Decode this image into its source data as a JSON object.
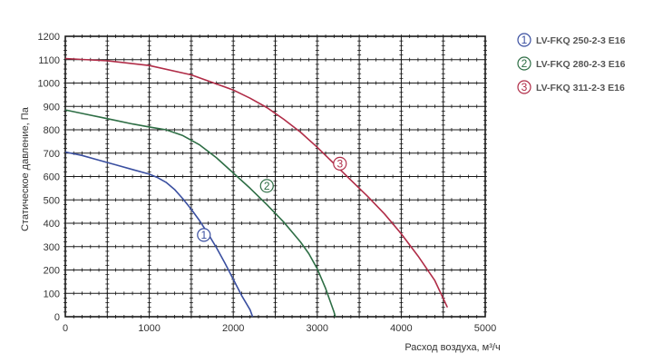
{
  "chart_data": {
    "type": "line",
    "title": "",
    "xlabel": "Расход воздуха, м³/ч",
    "ylabel": "Статическое давление, Па",
    "xlim": [
      0,
      5000
    ],
    "ylim": [
      0,
      1200
    ],
    "xticks": [
      0,
      1000,
      2000,
      3000,
      4000,
      5000
    ],
    "yticks": [
      0,
      100,
      200,
      300,
      400,
      500,
      600,
      700,
      800,
      900,
      1000,
      1100,
      1200
    ],
    "grid": true,
    "legend_position": "right",
    "series": [
      {
        "name": "LV-FKQ 250-2-3 E16",
        "marker_label": "1",
        "color": "#3a4fa0",
        "marker_point": [
          1650,
          350
        ],
        "points": [
          [
            0,
            705
          ],
          [
            200,
            690
          ],
          [
            400,
            670
          ],
          [
            600,
            650
          ],
          [
            800,
            630
          ],
          [
            1000,
            610
          ],
          [
            1100,
            595
          ],
          [
            1200,
            575
          ],
          [
            1300,
            545
          ],
          [
            1400,
            505
          ],
          [
            1500,
            460
          ],
          [
            1600,
            410
          ],
          [
            1700,
            355
          ],
          [
            1800,
            295
          ],
          [
            1900,
            230
          ],
          [
            2000,
            160
          ],
          [
            2100,
            90
          ],
          [
            2200,
            30
          ],
          [
            2230,
            0
          ]
        ]
      },
      {
        "name": "LV-FKQ 280-2-3 E16",
        "marker_label": "2",
        "color": "#2e6e45",
        "marker_point": [
          2400,
          560
        ],
        "points": [
          [
            0,
            885
          ],
          [
            200,
            870
          ],
          [
            400,
            855
          ],
          [
            600,
            840
          ],
          [
            800,
            825
          ],
          [
            1000,
            812
          ],
          [
            1200,
            800
          ],
          [
            1400,
            775
          ],
          [
            1600,
            735
          ],
          [
            1800,
            680
          ],
          [
            2000,
            615
          ],
          [
            2200,
            550
          ],
          [
            2400,
            480
          ],
          [
            2600,
            405
          ],
          [
            2800,
            320
          ],
          [
            2900,
            270
          ],
          [
            3000,
            205
          ],
          [
            3100,
            120
          ],
          [
            3200,
            20
          ],
          [
            3215,
            0
          ]
        ]
      },
      {
        "name": "LV-FKQ 311-2-3 E16",
        "marker_label": "3",
        "color": "#b02c47",
        "marker_point": [
          3270,
          655
        ],
        "points": [
          [
            0,
            1105
          ],
          [
            500,
            1095
          ],
          [
            1000,
            1075
          ],
          [
            1500,
            1035
          ],
          [
            2000,
            970
          ],
          [
            2200,
            935
          ],
          [
            2400,
            895
          ],
          [
            2600,
            845
          ],
          [
            2800,
            790
          ],
          [
            3000,
            725
          ],
          [
            3200,
            655
          ],
          [
            3400,
            585
          ],
          [
            3600,
            515
          ],
          [
            3800,
            440
          ],
          [
            4000,
            355
          ],
          [
            4200,
            260
          ],
          [
            4400,
            155
          ],
          [
            4550,
            40
          ]
        ]
      }
    ]
  }
}
